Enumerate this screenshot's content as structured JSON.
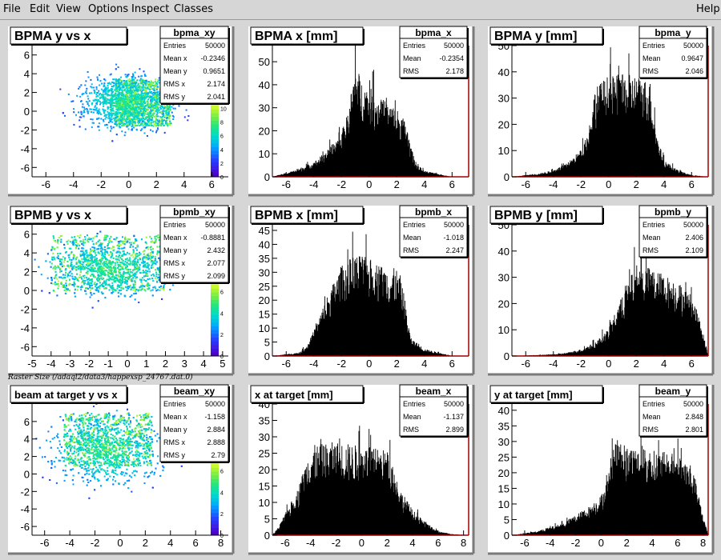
{
  "menu": {
    "items": [
      "File",
      "Edit",
      "View",
      "Options",
      "Inspect",
      "Classes"
    ],
    "help": "Help"
  },
  "caption": "Raster Size (/adaql2/data3/happexsp_24767.dat.0)",
  "chart_data": [
    {
      "type": "heatmap",
      "title": "BPMA y vs x",
      "stats_name": "bpma_xy",
      "stats": [
        [
          "Entries",
          "50000"
        ],
        [
          "Mean x",
          "-0.2346"
        ],
        [
          "Mean y",
          "0.9651"
        ],
        [
          "RMS x",
          "2.174"
        ],
        [
          "RMS y",
          "2.041"
        ]
      ],
      "xlim": [
        -7,
        7.2
      ],
      "ylim": [
        -7,
        7
      ],
      "xticks": [
        -6,
        -4,
        -2,
        0,
        2,
        4,
        6
      ],
      "yticks": [
        -6,
        -4,
        -2,
        0,
        2,
        4,
        6
      ],
      "core": {
        "x": [
          -1,
          3
        ],
        "y": [
          -1.5,
          3.5
        ]
      },
      "mean": [
        -0.23,
        0.97
      ],
      "rms": [
        2.17,
        2.04
      ],
      "palette_ticks": [
        0,
        2,
        4,
        6,
        8,
        10
      ],
      "zmax": 11
    },
    {
      "type": "area",
      "title": "BPMA x [mm]",
      "stats_name": "bpma_x",
      "stats": [
        [
          "Entries",
          "50000"
        ],
        [
          "Mean",
          "-0.2354"
        ],
        [
          "RMS",
          "2.178"
        ]
      ],
      "xlim": [
        -7,
        7.2
      ],
      "ylim": [
        0,
        57
      ],
      "xticks": [
        -6,
        -4,
        -2,
        0,
        2,
        4,
        6
      ],
      "yticks": [
        0,
        10,
        20,
        30,
        40,
        50
      ],
      "profile": {
        "x": [
          -7,
          -5.5,
          -4,
          -3,
          -2,
          -1.5,
          -1,
          -0.5,
          0,
          1,
          2,
          2.7,
          3,
          3.5,
          4,
          5,
          6,
          7.2
        ],
        "y": [
          0,
          2,
          5,
          9,
          15,
          22,
          38,
          32,
          30,
          26,
          23,
          18,
          10,
          4,
          2,
          1,
          0,
          0
        ]
      },
      "noise": 0.3
    },
    {
      "type": "area",
      "title": "BPMA y [mm]",
      "stats_name": "bpma_y",
      "stats": [
        [
          "Entries",
          "50000"
        ],
        [
          "Mean",
          "0.9647"
        ],
        [
          "RMS",
          "2.046"
        ]
      ],
      "xlim": [
        -7,
        7.2
      ],
      "ylim": [
        0,
        50
      ],
      "xticks": [
        -6,
        -4,
        -2,
        0,
        2,
        4,
        6
      ],
      "yticks": [
        0,
        10,
        20,
        30,
        40,
        50
      ],
      "profile": {
        "x": [
          -7,
          -6,
          -5,
          -4,
          -3,
          -2,
          -1.5,
          -1,
          0,
          1,
          2,
          3,
          3.5,
          4,
          5,
          6,
          7.2
        ],
        "y": [
          0,
          0.5,
          1,
          2,
          4,
          8,
          13,
          26,
          30,
          30,
          30,
          28,
          12,
          5,
          2,
          0.5,
          0
        ]
      },
      "noise": 0.3
    },
    {
      "type": "heatmap",
      "title": "BPMB y vs x",
      "stats_name": "bpmb_xy",
      "stats": [
        [
          "Entries",
          "50000"
        ],
        [
          "Mean x",
          "-0.8881"
        ],
        [
          "Mean y",
          "2.432"
        ],
        [
          "RMS x",
          "2.077"
        ],
        [
          "RMS y",
          "2.099"
        ]
      ],
      "xlim": [
        -5,
        5.3
      ],
      "ylim": [
        -7,
        7
      ],
      "xticks": [
        -5,
        -4,
        -3,
        -2,
        -1,
        0,
        1,
        2,
        3,
        4,
        5
      ],
      "yticks": [
        -6,
        -4,
        -2,
        0,
        2,
        4,
        6
      ],
      "core": {
        "x": [
          -4,
          2
        ],
        "y": [
          0,
          6
        ]
      },
      "mean": [
        -0.89,
        2.43
      ],
      "rms": [
        2.08,
        2.1
      ],
      "palette_ticks": [
        0,
        2,
        4,
        6
      ],
      "zmax": 7
    },
    {
      "type": "area",
      "title": "BPMB x [mm]",
      "stats_name": "bpmb_x",
      "stats": [
        [
          "Entries",
          "50000"
        ],
        [
          "Mean",
          "-1.018"
        ],
        [
          "RMS",
          "2.247"
        ]
      ],
      "xlim": [
        -7,
        7.2
      ],
      "ylim": [
        0,
        47
      ],
      "xticks": [
        -6,
        -4,
        -2,
        0,
        2,
        4,
        6
      ],
      "yticks": [
        0,
        5,
        10,
        15,
        20,
        25,
        30,
        35,
        40,
        45
      ],
      "profile": {
        "x": [
          -7,
          -6,
          -5,
          -4.5,
          -4,
          -3,
          -2,
          -1,
          0,
          1,
          2,
          2.5,
          3,
          4,
          5,
          6,
          7.2
        ],
        "y": [
          0,
          0.5,
          1,
          3,
          7,
          17,
          25,
          28,
          27,
          25,
          24,
          18,
          5,
          2,
          1,
          0,
          0
        ]
      },
      "noise": 0.3
    },
    {
      "type": "area",
      "title": "BPMB y [mm]",
      "stats_name": "bpmb_y",
      "stats": [
        [
          "Entries",
          "50000"
        ],
        [
          "Mean",
          "2.406"
        ],
        [
          "RMS",
          "2.109"
        ]
      ],
      "xlim": [
        -7,
        7.2
      ],
      "ylim": [
        0,
        50
      ],
      "xticks": [
        -6,
        -4,
        -2,
        0,
        2,
        4,
        6
      ],
      "yticks": [
        0,
        10,
        20,
        30,
        40,
        50
      ],
      "profile": {
        "x": [
          -7,
          -4,
          -3,
          -2,
          -1,
          0,
          1,
          2,
          3,
          4,
          5,
          6,
          6.5,
          7,
          7.2
        ],
        "y": [
          0,
          0.5,
          1,
          2,
          4,
          8,
          18,
          27,
          26,
          24,
          22,
          18,
          12,
          4,
          0
        ]
      },
      "noise": 0.3
    },
    {
      "type": "heatmap",
      "title": "beam at target y vs x",
      "stats_name": "beam_xy",
      "stats": [
        [
          "Entries",
          "50000"
        ],
        [
          "Mean x",
          "-1.158"
        ],
        [
          "Mean y",
          "2.884"
        ],
        [
          "RMS x",
          "2.888"
        ],
        [
          "RMS y",
          "2.79"
        ]
      ],
      "xlim": [
        -7,
        8.6
      ],
      "ylim": [
        -7,
        8
      ],
      "xticks": [
        -6,
        -4,
        -2,
        0,
        2,
        4,
        6,
        8
      ],
      "yticks": [
        -6,
        -4,
        -2,
        0,
        2,
        4,
        6
      ],
      "core": {
        "x": [
          -4.5,
          2.5
        ],
        "y": [
          1,
          7
        ]
      },
      "mean": [
        -1.16,
        2.88
      ],
      "rms": [
        2.89,
        2.79
      ],
      "palette_ticks": [
        0,
        2,
        4,
        6
      ],
      "zmax": 7
    },
    {
      "type": "area",
      "title": "x at target [mm]",
      "stats_name": "beam_x",
      "stats": [
        [
          "Entries",
          "50000"
        ],
        [
          "Mean",
          "-1.137"
        ],
        [
          "RMS",
          "2.899"
        ]
      ],
      "xlim": [
        -7,
        8.4
      ],
      "ylim": [
        0,
        40
      ],
      "xticks": [
        -6,
        -4,
        -2,
        0,
        2,
        4,
        6,
        8
      ],
      "yticks": [
        0,
        5,
        10,
        15,
        20,
        25,
        30,
        35,
        40
      ],
      "profile": {
        "x": [
          -7,
          -6.5,
          -6,
          -5.5,
          -5,
          -4.5,
          -4,
          -2,
          0,
          2,
          2.5,
          3,
          4,
          5,
          6,
          7,
          8.4
        ],
        "y": [
          0,
          2,
          5,
          8,
          11,
          16,
          21,
          22,
          21,
          20,
          16,
          11,
          6,
          3,
          1,
          0.3,
          0
        ]
      },
      "noise": 0.3
    },
    {
      "type": "area",
      "title": "y at target [mm]",
      "stats_name": "beam_y",
      "stats": [
        [
          "Entries",
          "50000"
        ],
        [
          "Mean",
          "2.848"
        ],
        [
          "RMS",
          "2.801"
        ]
      ],
      "xlim": [
        -7,
        8.4
      ],
      "ylim": [
        0,
        42
      ],
      "xticks": [
        -6,
        -4,
        -2,
        0,
        2,
        4,
        6,
        8
      ],
      "yticks": [
        0,
        5,
        10,
        15,
        20,
        25,
        30,
        35,
        40
      ],
      "profile": {
        "x": [
          -7,
          -5,
          -4,
          -3,
          -2,
          -1,
          0,
          0.5,
          1,
          2,
          4,
          6,
          7,
          7.5,
          8,
          8.4
        ],
        "y": [
          0,
          1,
          2,
          3,
          5,
          7,
          10,
          14,
          24,
          22,
          21,
          20,
          18,
          12,
          5,
          0
        ]
      },
      "noise": 0.3
    }
  ]
}
